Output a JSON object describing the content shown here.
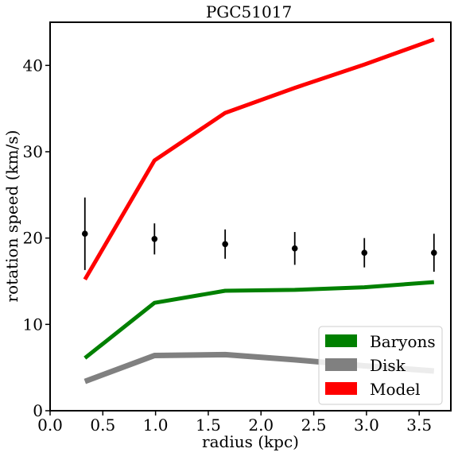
{
  "chart_data": {
    "type": "line",
    "title": "PGC51017",
    "xlabel": "radius (kpc)",
    "ylabel": "rotation speed (km/s)",
    "xlim": [
      0.0,
      3.8
    ],
    "ylim": [
      0,
      45
    ],
    "xticks": [
      "0.0",
      "0.5",
      "1.0",
      "1.5",
      "2.0",
      "2.5",
      "3.0",
      "3.5"
    ],
    "yticks": [
      "0",
      "10",
      "20",
      "30",
      "40"
    ],
    "x": [
      0.33,
      0.99,
      1.66,
      2.32,
      2.98,
      3.64
    ],
    "series": [
      {
        "name": "Baryons",
        "color": "#008000",
        "values": [
          6.1,
          12.5,
          13.9,
          14.0,
          14.3,
          14.9
        ]
      },
      {
        "name": "Disk",
        "color": "#808080",
        "values": [
          3.4,
          6.4,
          6.5,
          5.9,
          5.2,
          4.6
        ]
      },
      {
        "name": "Model",
        "color": "#ff0000",
        "values": [
          15.2,
          29.0,
          34.5,
          37.4,
          40.1,
          43.0
        ]
      }
    ],
    "observed": {
      "color": "#000000",
      "values": [
        20.5,
        19.9,
        19.3,
        18.8,
        18.3,
        18.3
      ],
      "errors": [
        4.2,
        1.8,
        1.7,
        1.9,
        1.7,
        2.2
      ]
    },
    "legend": {
      "placement": "lower-right",
      "entries": [
        "Baryons",
        "Disk",
        "Model"
      ]
    }
  }
}
